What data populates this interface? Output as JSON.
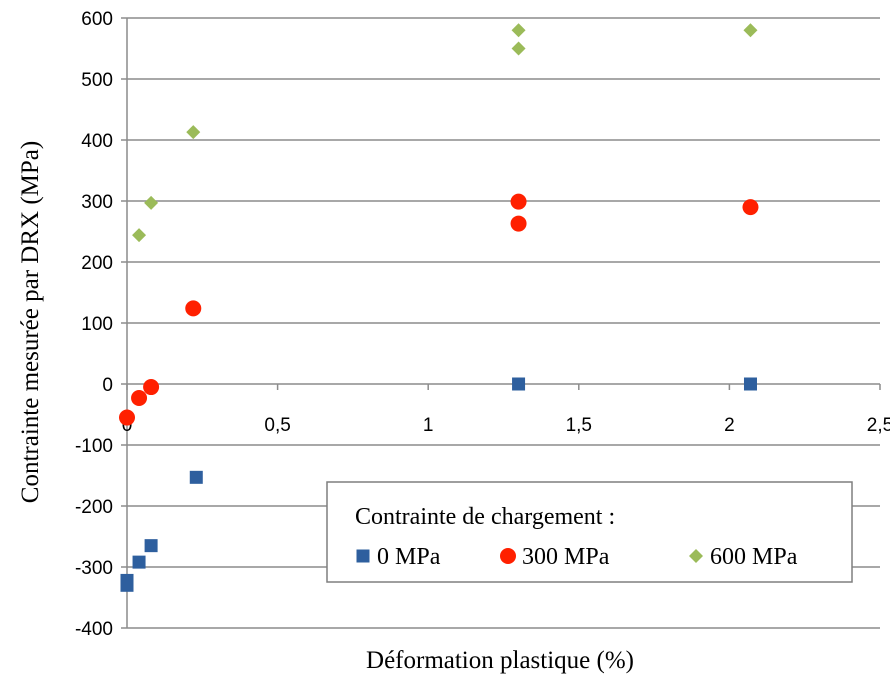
{
  "chart_data": {
    "type": "scatter",
    "xlabel": "Déformation plastique (%)",
    "ylabel": "Contrainte mesurée par DRX (MPa)",
    "xlim": [
      0,
      2.5
    ],
    "ylim": [
      -400,
      600
    ],
    "x_ticks": [
      "0",
      "0,5",
      "1",
      "1,5",
      "2",
      "2,5"
    ],
    "x_tick_values": [
      0,
      0.5,
      1,
      1.5,
      2,
      2.5
    ],
    "y_ticks": [
      "600",
      "500",
      "400",
      "300",
      "200",
      "100",
      "0",
      "-100",
      "-200",
      "-300",
      "-400"
    ],
    "y_tick_values": [
      600,
      500,
      400,
      300,
      200,
      100,
      0,
      -100,
      -200,
      -300,
      -400
    ],
    "grid": "horizontal",
    "legend": {
      "title": "Contrainte de chargement :",
      "placement": "bottom-right"
    },
    "series": [
      {
        "name": "0 MPa",
        "marker": "square",
        "color": "#2E5F9E",
        "points": [
          [
            0.0,
            -322
          ],
          [
            0.0,
            -330
          ],
          [
            0.04,
            -292
          ],
          [
            0.08,
            -265
          ],
          [
            0.23,
            -153
          ],
          [
            1.3,
            0
          ],
          [
            2.07,
            0
          ]
        ]
      },
      {
        "name": "300 MPa",
        "marker": "circle",
        "color": "#FF2000",
        "points": [
          [
            0.0,
            -55
          ],
          [
            0.04,
            -23
          ],
          [
            0.08,
            -5
          ],
          [
            0.22,
            124
          ],
          [
            1.3,
            299
          ],
          [
            1.3,
            263
          ],
          [
            2.07,
            290
          ]
        ]
      },
      {
        "name": "600 MPa",
        "marker": "diamond",
        "color": "#9BBB59",
        "points": [
          [
            0.04,
            244
          ],
          [
            0.08,
            297
          ],
          [
            0.22,
            413
          ],
          [
            1.3,
            580
          ],
          [
            1.3,
            550
          ],
          [
            2.07,
            580
          ]
        ]
      }
    ]
  }
}
